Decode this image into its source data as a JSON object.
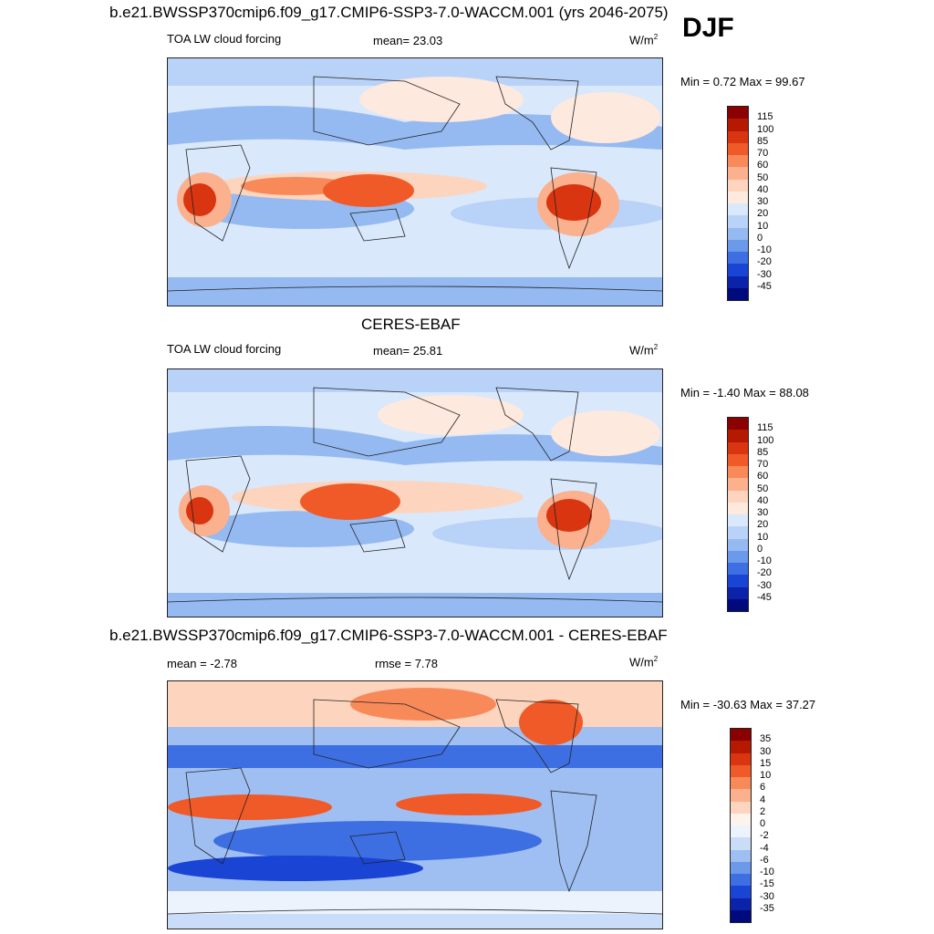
{
  "season": "DJF",
  "units_label": "W/m",
  "units_exp": "2",
  "panels": [
    {
      "title": "b.e21.BWSSP370cmip6.f09_g17.CMIP6-SSP3-7.0-WACCM.001 (yrs 2046-2075)",
      "left_label": "TOA LW cloud forcing",
      "stat_label": "mean=  23.03",
      "minmax": "Min =   0.72 Max =  99.67",
      "colorbar": [
        "115",
        "100",
        "85",
        "70",
        "60",
        "50",
        "40",
        "30",
        "20",
        "10",
        "0",
        "-10",
        "-20",
        "-30",
        "-45"
      ]
    },
    {
      "title": "CERES-EBAF",
      "left_label": "TOA LW cloud forcing",
      "stat_label": "mean=  25.81",
      "minmax": "Min =  -1.40 Max =  88.08",
      "colorbar": [
        "115",
        "100",
        "85",
        "70",
        "60",
        "50",
        "40",
        "30",
        "20",
        "10",
        "0",
        "-10",
        "-20",
        "-30",
        "-45"
      ]
    },
    {
      "title": "b.e21.BWSSP370cmip6.f09_g17.CMIP6-SSP3-7.0-WACCM.001 - CERES-EBAF",
      "left_label": "mean =  -2.78",
      "stat_label": "rmse =   7.78",
      "minmax": "Min = -30.63 Max =  37.27",
      "colorbar": [
        "35",
        "30",
        "15",
        "10",
        "6",
        "4",
        "2",
        "0",
        "-2",
        "-4",
        "-6",
        "-10",
        "-15",
        "-30",
        "-35"
      ]
    }
  ],
  "colors": {
    "abs_scale": [
      "#8b0000",
      "#b51a00",
      "#d83510",
      "#f05a28",
      "#f88a5a",
      "#fbb08e",
      "#fdd4bd",
      "#fde9de",
      "#d9e8fb",
      "#b9d2f7",
      "#95b9f1",
      "#6c9aeb",
      "#3d6fe3",
      "#1a44d4",
      "#0a23a8",
      "#000a7c"
    ],
    "diff_scale": [
      "#8b0000",
      "#b51a00",
      "#d83510",
      "#f05a28",
      "#f88a5a",
      "#fbb08e",
      "#fdd4bd",
      "#fef3ec",
      "#edf3fd",
      "#c9dcf8",
      "#9fbff2",
      "#6c9aeb",
      "#3d6fe3",
      "#1a44d4",
      "#0a23a8",
      "#000a7c"
    ]
  },
  "chart_data": [
    {
      "type": "heatmap",
      "title": "b.e21.BWSSP370cmip6.f09_g17.CMIP6-SSP3-7.0-WACCM.001 (yrs 2046-2075)",
      "variable": "TOA LW cloud forcing",
      "season": "DJF",
      "units": "W/m2",
      "mean": 23.03,
      "min": 0.72,
      "max": 99.67,
      "levels": [
        -45,
        -30,
        -20,
        -10,
        0,
        10,
        20,
        30,
        40,
        50,
        60,
        70,
        85,
        100,
        115
      ]
    },
    {
      "type": "heatmap",
      "title": "CERES-EBAF",
      "variable": "TOA LW cloud forcing",
      "units": "W/m2",
      "mean": 25.81,
      "min": -1.4,
      "max": 88.08,
      "levels": [
        -45,
        -30,
        -20,
        -10,
        0,
        10,
        20,
        30,
        40,
        50,
        60,
        70,
        85,
        100,
        115
      ]
    },
    {
      "type": "heatmap",
      "title": "b.e21.BWSSP370cmip6.f09_g17.CMIP6-SSP3-7.0-WACCM.001 - CERES-EBAF",
      "units": "W/m2",
      "mean": -2.78,
      "rmse": 7.78,
      "min": -30.63,
      "max": 37.27,
      "levels": [
        -35,
        -30,
        -15,
        -10,
        -6,
        -4,
        -2,
        0,
        2,
        4,
        6,
        10,
        15,
        30,
        35
      ]
    }
  ]
}
